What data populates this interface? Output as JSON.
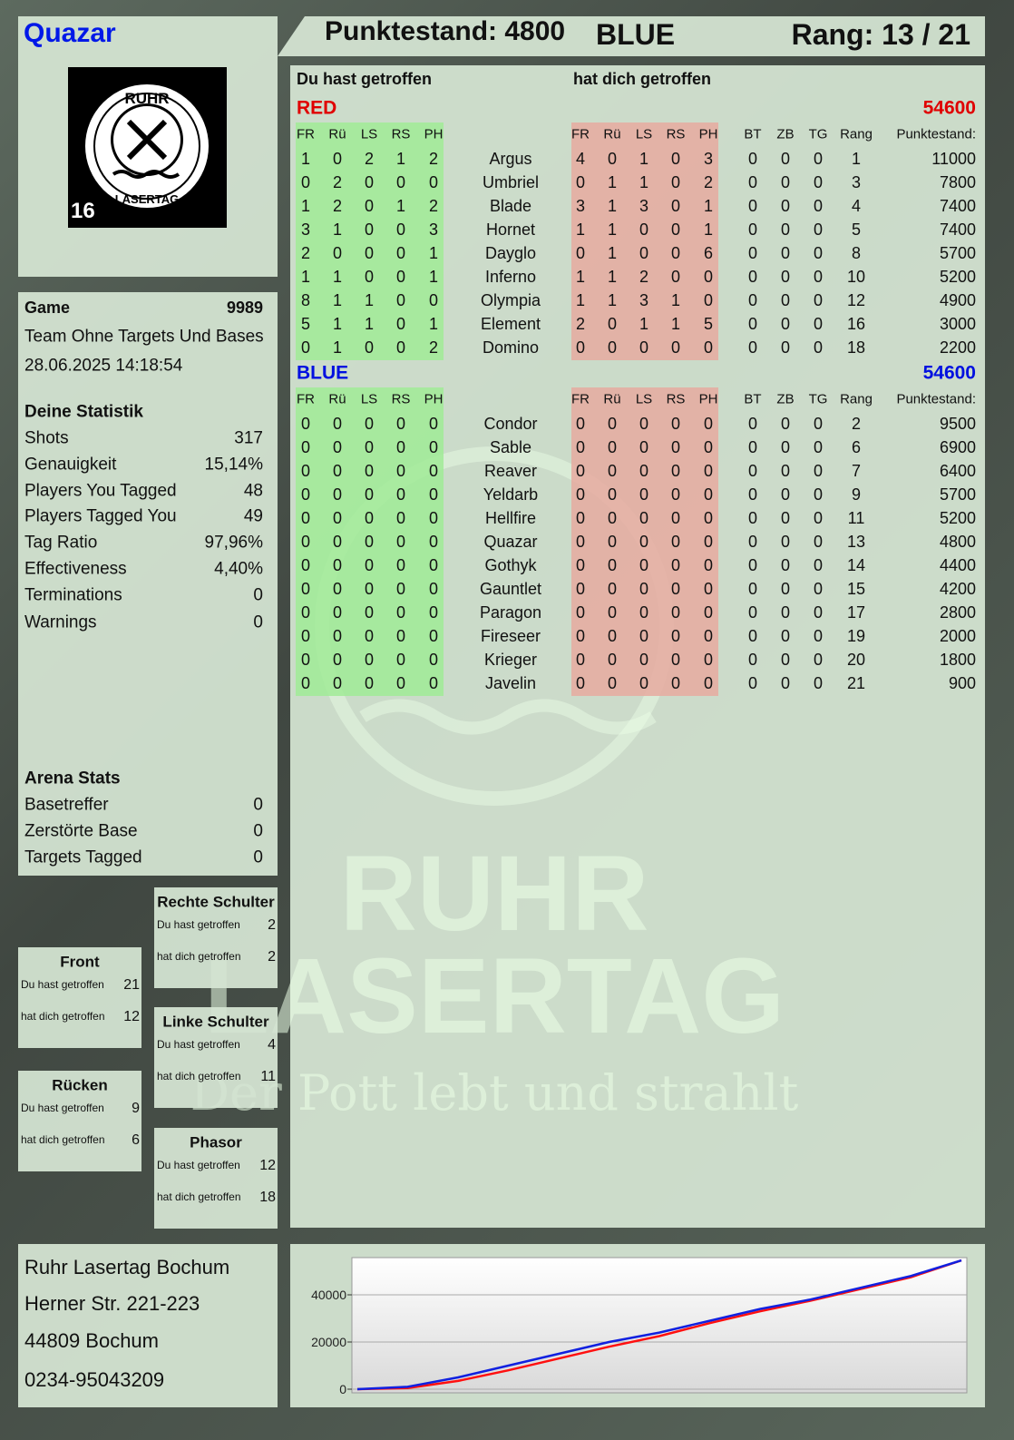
{
  "header": {
    "player": "Quazar",
    "score": "Punktestand: 4800",
    "team": "BLUE",
    "rank": "Rang: 13 / 21"
  },
  "logo": {
    "top": "RUHR",
    "bottom": "LASERTAG",
    "number": "16"
  },
  "watermark": {
    "line1": "RUHR",
    "line2": "LASERTAG",
    "slogan": "Der Pott lebt und strahlt"
  },
  "game": {
    "label": "Game",
    "number": 9989,
    "mode": "Team Ohne Targets Und Bases",
    "date": "28.06.2025 14:18:54"
  },
  "stats": {
    "title": "Deine Statistik",
    "rows": [
      [
        "Shots",
        317
      ],
      [
        "Genauigkeit",
        "15,14%"
      ],
      [
        "Players You Tagged",
        48
      ],
      [
        "Players Tagged You",
        49
      ],
      [
        "Tag Ratio",
        "97,96%"
      ],
      [
        "Effectiveness",
        "4,40%"
      ],
      [
        "Terminations",
        0
      ],
      [
        "Warnings",
        0
      ]
    ]
  },
  "arena": {
    "title": "Arena Stats",
    "rows": [
      [
        "Basetreffer",
        0
      ],
      [
        "Zerstörte Base",
        0
      ],
      [
        "Targets Tagged",
        0
      ]
    ]
  },
  "zones": [
    {
      "title": "Rechte Schulter",
      "rows": [
        [
          "Du hast getroffen",
          2
        ],
        [
          "hat dich getroffen",
          2
        ]
      ]
    },
    {
      "title": "Front",
      "rows": [
        [
          "Du hast getroffen",
          21
        ],
        [
          "hat dich getroffen",
          12
        ]
      ]
    },
    {
      "title": "Linke Schulter",
      "rows": [
        [
          "Du hast getroffen",
          4
        ],
        [
          "hat dich getroffen",
          11
        ]
      ]
    },
    {
      "title": "Rücken",
      "rows": [
        [
          "Du hast getroffen",
          9
        ],
        [
          "hat dich getroffen",
          6
        ]
      ]
    },
    {
      "title": "Phasor",
      "rows": [
        [
          "Du hast getroffen",
          12
        ],
        [
          "hat dich getroffen",
          18
        ]
      ]
    }
  ],
  "address": [
    "Ruhr Lasertag Bochum",
    "Herner Str. 221-223",
    "44809 Bochum",
    "0234-95043209"
  ],
  "table": {
    "given_title": "Du hast getroffen",
    "received_title": "hat dich getroffen",
    "hit_columns": [
      "FR",
      "Rü",
      "LS",
      "RS",
      "PH"
    ],
    "extra_columns": [
      "BT",
      "ZB",
      "TG",
      "Rang",
      "Punktestand:"
    ],
    "teams": [
      {
        "name": "RED",
        "score": 54600,
        "color": "#e00000",
        "rows": [
          [
            1,
            0,
            2,
            1,
            2,
            "Argus",
            4,
            0,
            1,
            0,
            3,
            0,
            0,
            0,
            1,
            11000
          ],
          [
            0,
            2,
            0,
            0,
            0,
            "Umbriel",
            0,
            1,
            1,
            0,
            2,
            0,
            0,
            0,
            3,
            7800
          ],
          [
            1,
            2,
            0,
            1,
            2,
            "Blade",
            3,
            1,
            3,
            0,
            1,
            0,
            0,
            0,
            4,
            7400
          ],
          [
            3,
            1,
            0,
            0,
            3,
            "Hornet",
            1,
            1,
            0,
            0,
            1,
            0,
            0,
            0,
            5,
            7400
          ],
          [
            2,
            0,
            0,
            0,
            1,
            "Dayglo",
            0,
            1,
            0,
            0,
            6,
            0,
            0,
            0,
            8,
            5700
          ],
          [
            1,
            1,
            0,
            0,
            1,
            "Inferno",
            1,
            1,
            2,
            0,
            0,
            0,
            0,
            0,
            10,
            5200
          ],
          [
            8,
            1,
            1,
            0,
            0,
            "Olympia",
            1,
            1,
            3,
            1,
            0,
            0,
            0,
            0,
            12,
            4900
          ],
          [
            5,
            1,
            1,
            0,
            1,
            "Element",
            2,
            0,
            1,
            1,
            5,
            0,
            0,
            0,
            16,
            3000
          ],
          [
            0,
            1,
            0,
            0,
            2,
            "Domino",
            0,
            0,
            0,
            0,
            0,
            0,
            0,
            0,
            18,
            2200
          ]
        ]
      },
      {
        "name": "BLUE",
        "score": 54600,
        "color": "#0010e0",
        "rows": [
          [
            0,
            0,
            0,
            0,
            0,
            "Condor",
            0,
            0,
            0,
            0,
            0,
            0,
            0,
            0,
            2,
            9500
          ],
          [
            0,
            0,
            0,
            0,
            0,
            "Sable",
            0,
            0,
            0,
            0,
            0,
            0,
            0,
            0,
            6,
            6900
          ],
          [
            0,
            0,
            0,
            0,
            0,
            "Reaver",
            0,
            0,
            0,
            0,
            0,
            0,
            0,
            0,
            7,
            6400
          ],
          [
            0,
            0,
            0,
            0,
            0,
            "Yeldarb",
            0,
            0,
            0,
            0,
            0,
            0,
            0,
            0,
            9,
            5700
          ],
          [
            0,
            0,
            0,
            0,
            0,
            "Hellfire",
            0,
            0,
            0,
            0,
            0,
            0,
            0,
            0,
            11,
            5200
          ],
          [
            0,
            0,
            0,
            0,
            0,
            "Quazar",
            0,
            0,
            0,
            0,
            0,
            0,
            0,
            0,
            13,
            4800
          ],
          [
            0,
            0,
            0,
            0,
            0,
            "Gothyk",
            0,
            0,
            0,
            0,
            0,
            0,
            0,
            0,
            14,
            4400
          ],
          [
            0,
            0,
            0,
            0,
            0,
            "Gauntlet",
            0,
            0,
            0,
            0,
            0,
            0,
            0,
            0,
            15,
            4200
          ],
          [
            0,
            0,
            0,
            0,
            0,
            "Paragon",
            0,
            0,
            0,
            0,
            0,
            0,
            0,
            0,
            17,
            2800
          ],
          [
            0,
            0,
            0,
            0,
            0,
            "Fireseer",
            0,
            0,
            0,
            0,
            0,
            0,
            0,
            0,
            19,
            2000
          ],
          [
            0,
            0,
            0,
            0,
            0,
            "Krieger",
            0,
            0,
            0,
            0,
            0,
            0,
            0,
            0,
            20,
            1800
          ],
          [
            0,
            0,
            0,
            0,
            0,
            "Javelin",
            0,
            0,
            0,
            0,
            0,
            0,
            0,
            0,
            21,
            900
          ]
        ]
      }
    ]
  },
  "chart_data": {
    "type": "line",
    "ylim": [
      0,
      55000
    ],
    "yticks": [
      0,
      20000,
      40000
    ],
    "grid": true,
    "series": [
      {
        "name": "RED",
        "color": "#ff1010",
        "values": [
          0,
          500,
          3500,
          8000,
          13000,
          18000,
          22500,
          28000,
          33000,
          37500,
          42500,
          47500,
          54600
        ]
      },
      {
        "name": "BLUE",
        "color": "#1020e0",
        "values": [
          0,
          1000,
          5000,
          10000,
          15000,
          20000,
          24000,
          29000,
          34000,
          38000,
          43000,
          48000,
          54600
        ]
      }
    ]
  }
}
